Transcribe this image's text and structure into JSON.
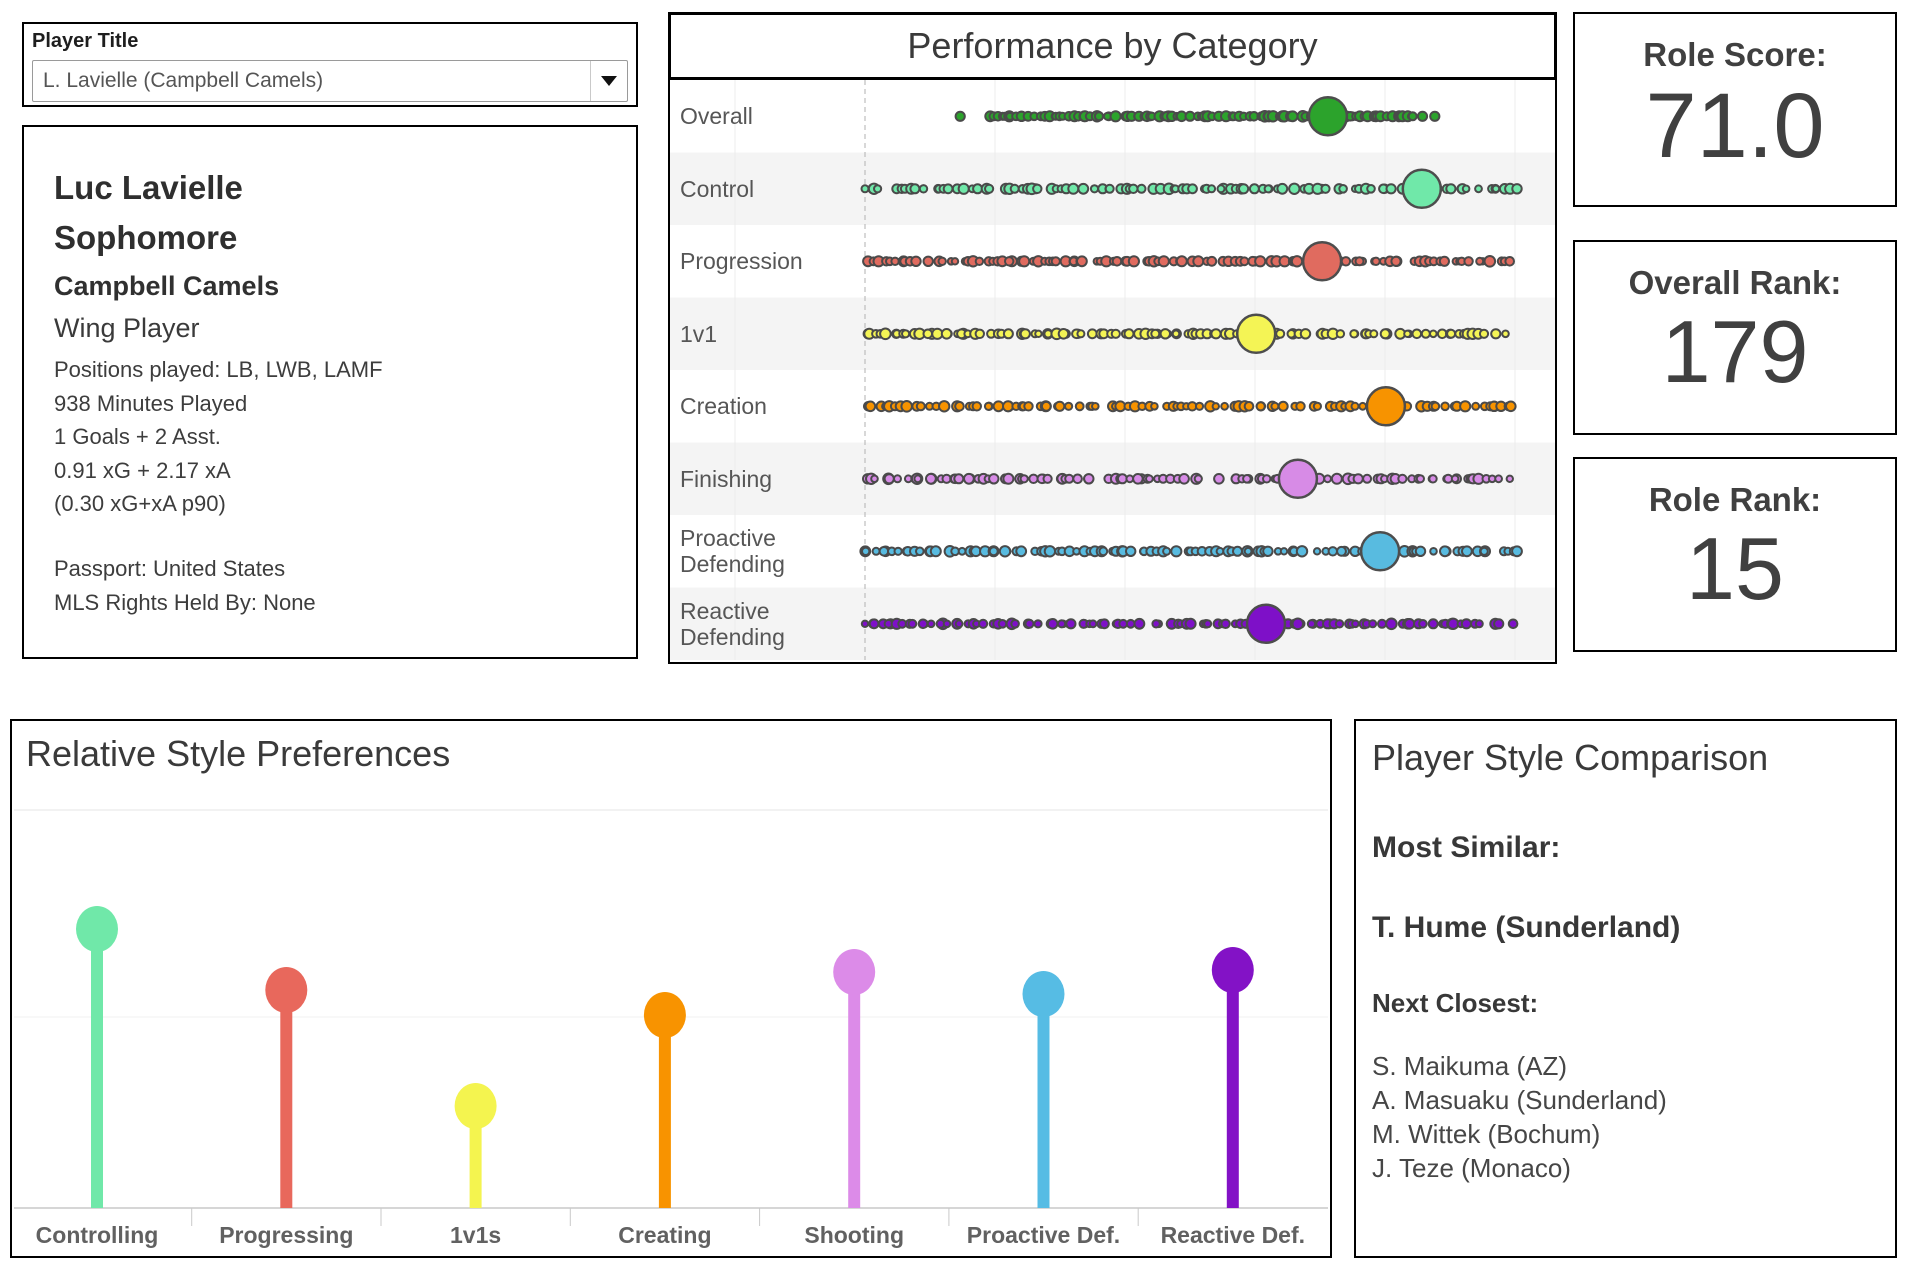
{
  "player_selector": {
    "label": "Player Title",
    "value": "L. Lavielle (Campbell Camels)"
  },
  "player_info": {
    "name": "Luc Lavielle",
    "class_year": "Sophomore",
    "team": "Campbell Camels",
    "role": "Wing Player",
    "details": [
      "Positions played: LB, LWB, LAMF",
      "938 Minutes Played",
      "1 Goals + 2 Asst.",
      "0.91 xG + 2.17 xA",
      "(0.30 xG+xA p90)"
    ],
    "passport": "Passport: United States",
    "mls_rights": "MLS Rights Held By: None"
  },
  "stats": [
    {
      "label": "Role Score:",
      "value": "71.0"
    },
    {
      "label": "Overall Rank:",
      "value": "179"
    },
    {
      "label": "Role Rank:",
      "value": "15"
    }
  ],
  "comparison": {
    "title": "Player Style Comparison",
    "most_similar_label": "Most Similar:",
    "most_similar": "T. Hume (Sunderland)",
    "next_closest_label": "Next Closest:",
    "next_closest": [
      "S. Maikuma (AZ)",
      "A. Masuaku (Sunderland)",
      "M. Wittek (Bochum)",
      "J. Teze (Monaco)"
    ]
  },
  "chart_data": [
    {
      "type": "strip",
      "title": "Performance by Category",
      "subtitle": "beeswarm strip per category; big dot = selected player, small dots = peer players",
      "value_scale": "0-100 (unlabeled axis; dashed reference line = 0)",
      "categories": [
        "Overall",
        "Control",
        "Progression",
        "1v1",
        "Creation",
        "Finishing",
        "Proactive\nDefending",
        "Reactive\nDefending"
      ],
      "player_values": [
        71.0,
        85.4,
        70.1,
        60.0,
        79.9,
        66.4,
        79.0,
        61.5
      ],
      "strip_ranges": [
        [
          19.2,
          84.5
        ],
        [
          0,
          100
        ],
        [
          0,
          99.2
        ],
        [
          0,
          98.6
        ],
        [
          0.5,
          99.5
        ],
        [
          0,
          98.9
        ],
        [
          0,
          100
        ],
        [
          0,
          99.4
        ]
      ],
      "outliers": [
        [
          14.6,
          85.5,
          87.4
        ],
        [],
        [],
        [],
        [],
        [],
        [],
        []
      ],
      "colors": [
        "#2CA32C",
        "#70E8A9",
        "#E06B5F",
        "#F4F455",
        "#F79300",
        "#D78BE6",
        "#58BBE0",
        "#7E10C8"
      ],
      "dot_stroke": "#4a4a4a",
      "band_alt_fill": "#f4f4f4",
      "grid": "faint vertical gridlines, dashed zero line"
    },
    {
      "type": "lollipop",
      "title": "Relative Style Preferences",
      "categories": [
        "Controlling",
        "Progressing",
        "1v1s",
        "Creating",
        "Shooting",
        "Proactive Def.",
        "Reactive Def."
      ],
      "values": [
        279,
        218,
        102,
        193,
        236,
        214,
        238
      ],
      "value_unit": "stick height in px above baseline (no numeric axis shown)",
      "colors": [
        "#70E8A9",
        "#E8685C",
        "#F4F44F",
        "#F89300",
        "#DC8BE8",
        "#56BCE4",
        "#8312C6"
      ],
      "baseline": "light gray axis line with category separator ticks, no tick labels",
      "grid": "one faint horizontal gridline"
    }
  ]
}
